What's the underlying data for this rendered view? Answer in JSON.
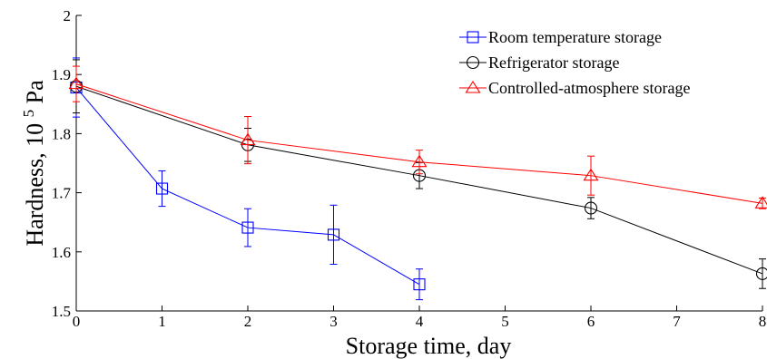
{
  "chart_data": {
    "type": "line",
    "title": "",
    "xlabel": "Storage time, day",
    "ylabel": "Hardness, 10",
    "ylabel_superscript": "5",
    "ylabel_unit": " Pa",
    "xlim": [
      0,
      8
    ],
    "ylim": [
      1.5,
      2.0
    ],
    "xticks": [
      "0",
      "1",
      "2",
      "3",
      "4",
      "5",
      "6",
      "7",
      "8"
    ],
    "yticks": [
      "1.5",
      "1.6",
      "1.7",
      "1.8",
      "1.9",
      "2"
    ],
    "grid": false,
    "legend_position": "top-right",
    "series": [
      {
        "name": "Room temperature storage",
        "color": "#0000ff",
        "marker": "square",
        "x": [
          0,
          1,
          2,
          3,
          4
        ],
        "y": [
          1.878,
          1.707,
          1.641,
          1.629,
          1.545
        ],
        "err": [
          0.05,
          0.03,
          0.032,
          0.05,
          0.026
        ]
      },
      {
        "name": "Refrigerator storage",
        "color": "#000000",
        "marker": "circle",
        "x": [
          0,
          2,
          4,
          6,
          8
        ],
        "y": [
          1.88,
          1.781,
          1.729,
          1.674,
          1.563
        ],
        "err": [
          0.045,
          0.028,
          0.022,
          0.018,
          0.025
        ]
      },
      {
        "name": "Controlled-atmosphere storage",
        "color": "#ff0000",
        "marker": "triangle",
        "x": [
          0,
          2,
          4,
          6,
          8
        ],
        "y": [
          1.884,
          1.789,
          1.752,
          1.729,
          1.682
        ],
        "err": [
          0.03,
          0.04,
          0.02,
          0.033,
          0.009
        ]
      }
    ]
  }
}
